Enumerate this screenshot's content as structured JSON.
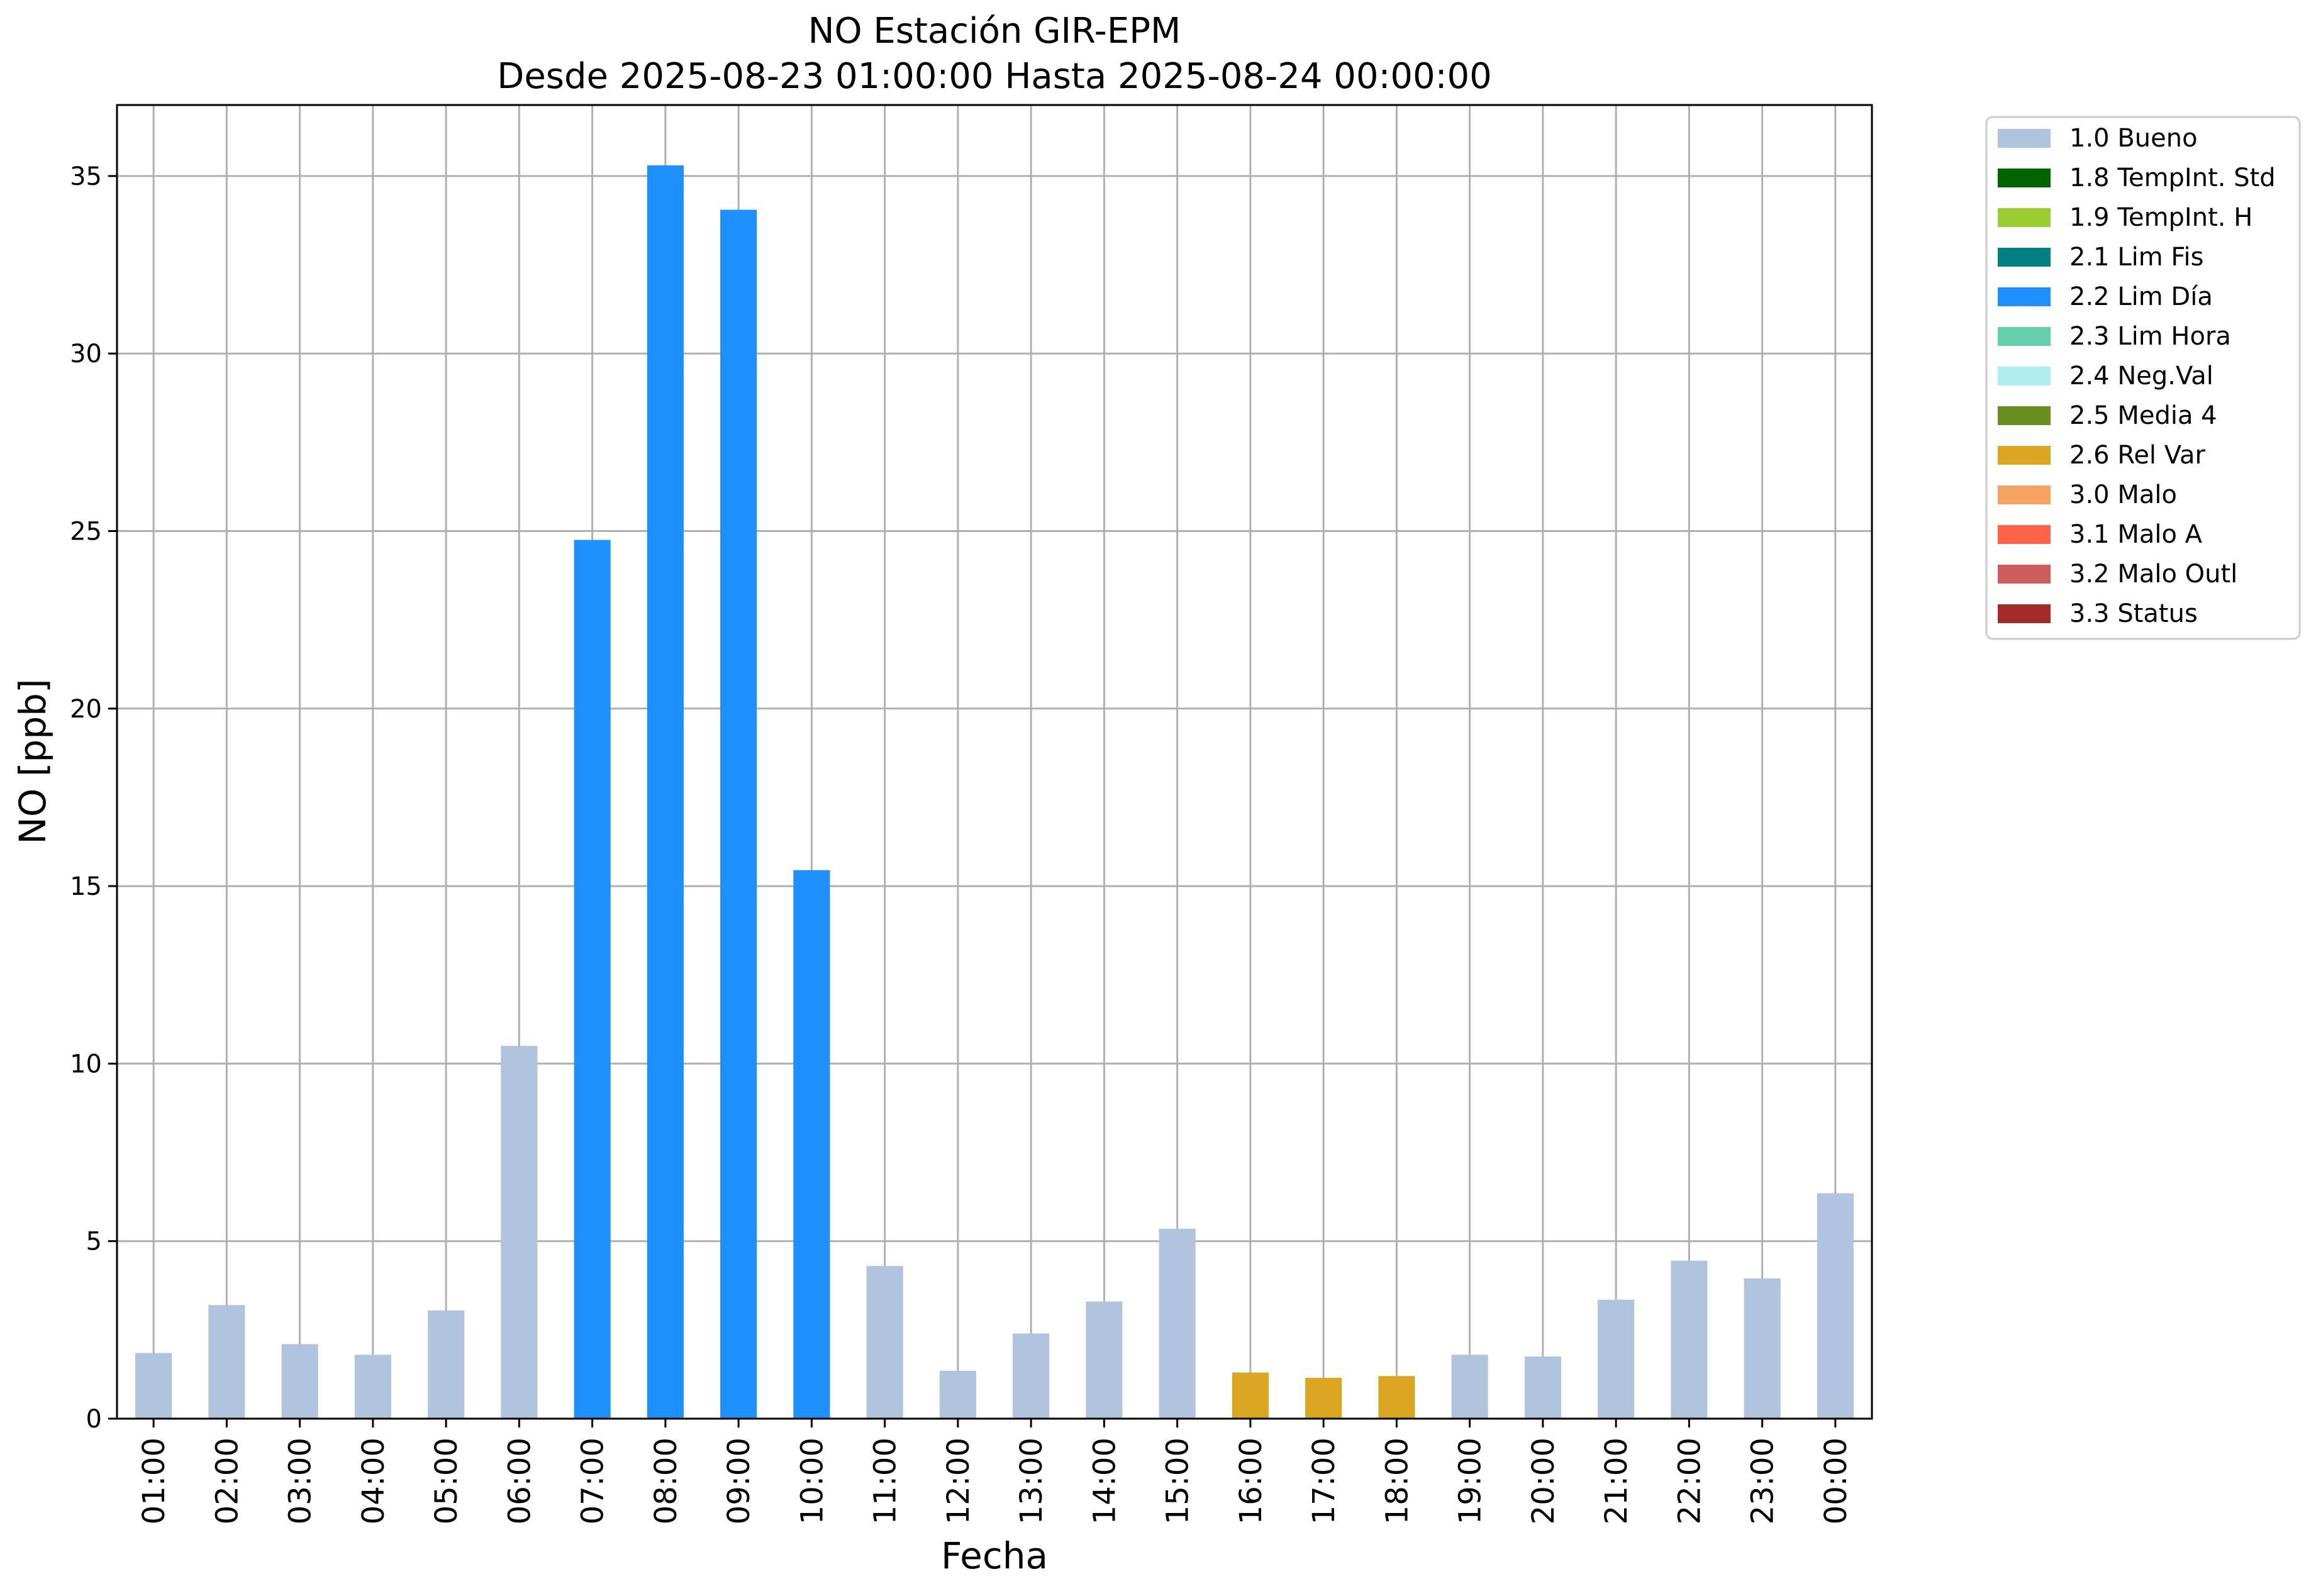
{
  "chart_data": {
    "type": "bar",
    "title": "NO Estación GIR-EPM",
    "subtitle": "Desde 2025-08-23 01:00:00 Hasta 2025-08-24 00:00:00",
    "xlabel": "Fecha",
    "ylabel": "NO [ppb]",
    "ylim": [
      0,
      37
    ],
    "yticks": [
      0,
      5,
      10,
      15,
      20,
      25,
      30,
      35
    ],
    "grid": true,
    "legend_position": "outside-top-right",
    "categories": [
      "01:00",
      "02:00",
      "03:00",
      "04:00",
      "05:00",
      "06:00",
      "07:00",
      "08:00",
      "09:00",
      "10:00",
      "11:00",
      "12:00",
      "13:00",
      "14:00",
      "15:00",
      "16:00",
      "17:00",
      "18:00",
      "19:00",
      "20:00",
      "21:00",
      "22:00",
      "23:00",
      "00:00"
    ],
    "values": [
      1.85,
      3.2,
      2.1,
      1.8,
      3.05,
      10.5,
      24.75,
      35.3,
      34.05,
      15.45,
      4.3,
      1.35,
      2.4,
      3.3,
      5.35,
      1.3,
      1.15,
      1.2,
      1.8,
      1.75,
      3.35,
      4.45,
      3.95,
      6.35
    ],
    "flags": [
      "1.0 Bueno",
      "1.0 Bueno",
      "1.0 Bueno",
      "1.0 Bueno",
      "1.0 Bueno",
      "1.0 Bueno",
      "2.2 Lim Día",
      "2.2 Lim Día",
      "2.2 Lim Día",
      "2.2 Lim Día",
      "1.0 Bueno",
      "1.0 Bueno",
      "1.0 Bueno",
      "1.0 Bueno",
      "1.0 Bueno",
      "2.6 Rel Var",
      "2.6 Rel Var",
      "2.6 Rel Var",
      "1.0 Bueno",
      "1.0 Bueno",
      "1.0 Bueno",
      "1.0 Bueno",
      "1.0 Bueno",
      "1.0 Bueno"
    ],
    "legend": [
      {
        "label": "1.0 Bueno",
        "color": "#b0c4de"
      },
      {
        "label": "1.8 TempInt. Std",
        "color": "#006400"
      },
      {
        "label": "1.9 TempInt. H",
        "color": "#9acd32"
      },
      {
        "label": "2.1 Lim Fis",
        "color": "#008080"
      },
      {
        "label": "2.2 Lim Día",
        "color": "#1e90ff"
      },
      {
        "label": "2.3 Lim Hora",
        "color": "#66cdaa"
      },
      {
        "label": "2.4 Neg.Val",
        "color": "#afeeee"
      },
      {
        "label": "2.5 Media 4",
        "color": "#6b8e23"
      },
      {
        "label": "2.6 Rel Var",
        "color": "#daa520"
      },
      {
        "label": "3.0 Malo",
        "color": "#f4a460"
      },
      {
        "label": "3.1 Malo A",
        "color": "#ff6347"
      },
      {
        "label": "3.2 Malo Outl",
        "color": "#cd5c5c"
      },
      {
        "label": "3.3 Status",
        "color": "#a52a2a"
      }
    ]
  }
}
